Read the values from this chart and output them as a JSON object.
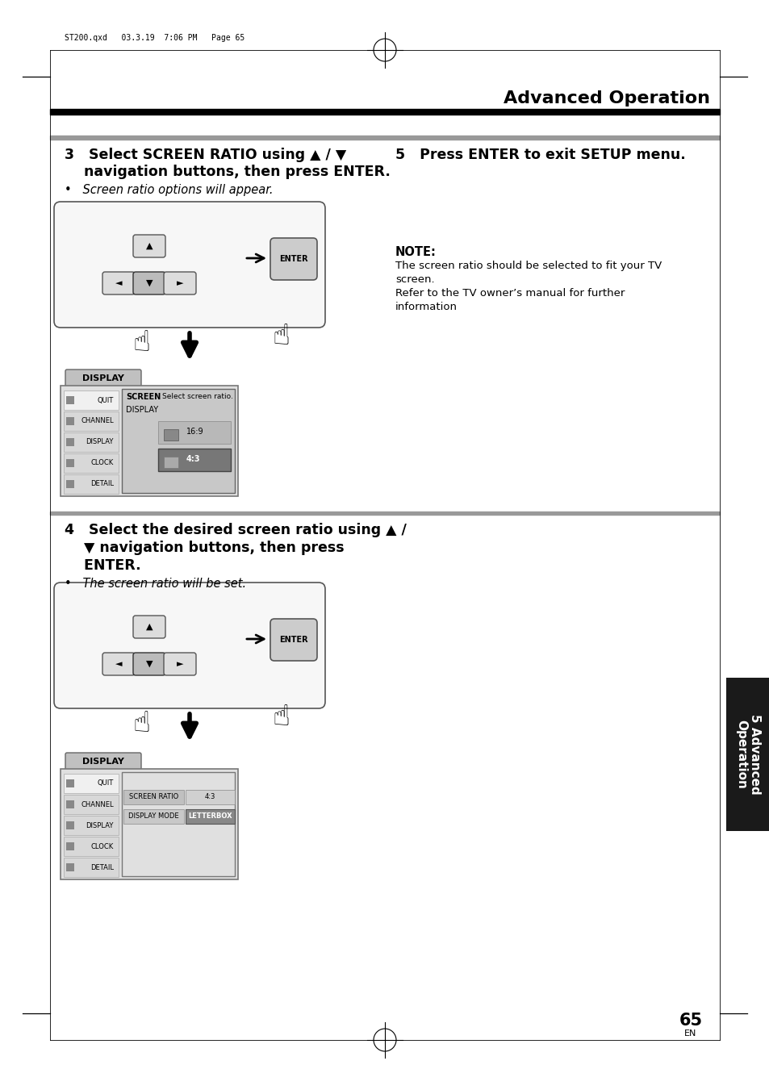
{
  "bg_color": "#ffffff",
  "title": "Advanced Operation",
  "header_text": "ST200.qxd   03.3.19  7:06 PM   Page 65",
  "page_number": "65",
  "page_sub": "EN",
  "tab_text": "5 Advanced\nOperation",
  "tab_bg": "#1a1a1a",
  "tab_text_color": "#ffffff",
  "gray_bar_color": "#888888",
  "light_gray": "#d4d4d4",
  "mid_gray": "#b0b0b0",
  "dark_gray": "#888888",
  "section3_line1": "3   Select SCREEN RATIO using ▲ / ▼",
  "section3_line2": "    navigation buttons, then press ENTER.",
  "section3_bullet": "•   Screen ratio options will appear.",
  "section5_title": "5   Press ENTER to exit SETUP menu.",
  "note_title": "NOTE:",
  "note_lines": [
    "The screen ratio should be selected to fit your TV",
    "screen.",
    "Refer to the TV owner’s manual for further",
    "information"
  ],
  "section4_line1": "4   Select the desired screen ratio using ▲ /",
  "section4_line2": "    ▼ navigation buttons, then press",
  "section4_line3": "    ENTER.",
  "section4_bullet": "•   The screen ratio will be set.",
  "sidebar_items": [
    "QUIT",
    "CHANNEL",
    "DISPLAY",
    "CLOCK",
    "DETAIL"
  ]
}
